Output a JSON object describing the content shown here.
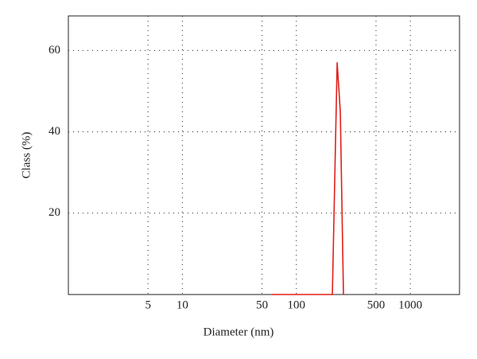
{
  "chart_data": {
    "type": "line",
    "x_label": "Diameter (nm)",
    "y_label": "Class (%)",
    "x_scale": "log",
    "xlim": [
      1,
      2700
    ],
    "ylim": [
      0,
      68.5
    ],
    "xticks": [
      5,
      10,
      50,
      100,
      500,
      1000
    ],
    "yticks": [
      20,
      40,
      60
    ],
    "grid": true,
    "series": [
      {
        "color": "#e0201b",
        "x": [
          61,
          207,
          228,
          243,
          259
        ],
        "values": [
          0,
          0,
          57,
          45,
          0
        ]
      }
    ]
  }
}
